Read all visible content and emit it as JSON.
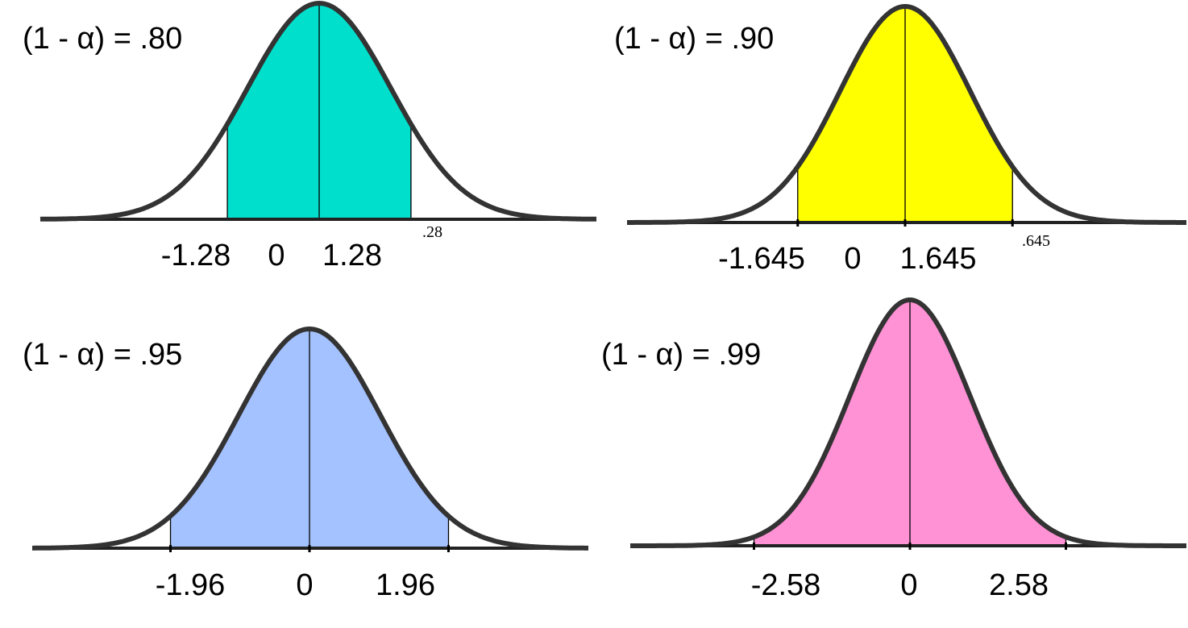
{
  "panels": [
    {
      "id": "p80",
      "confidence_label": "(1 - α) = .80",
      "z": 1.28,
      "tick_labels": [
        "-1.28",
        "0",
        "1.28"
      ],
      "stray_label": ".28",
      "fill_color": "#00DFCB"
    },
    {
      "id": "p90",
      "confidence_label": "(1 - α) = .90",
      "z": 1.645,
      "tick_labels": [
        "-1.645",
        "0",
        "1.645"
      ],
      "stray_label": ".645",
      "fill_color": "#FFFF00"
    },
    {
      "id": "p95",
      "confidence_label": "(1 - α) = .95",
      "z": 1.96,
      "tick_labels": [
        "-1.96",
        "0",
        "1.96"
      ],
      "stray_label": "",
      "fill_color": "#A4C2FF"
    },
    {
      "id": "p99",
      "confidence_label": "(1 - α) = .99",
      "z": 2.58,
      "tick_labels": [
        "-2.58",
        "0",
        "2.58"
      ],
      "stray_label": "",
      "fill_color": "#FF91D5"
    }
  ],
  "colors": {
    "curve": "#333333",
    "axis": "#222222",
    "divider": "#000000"
  }
}
